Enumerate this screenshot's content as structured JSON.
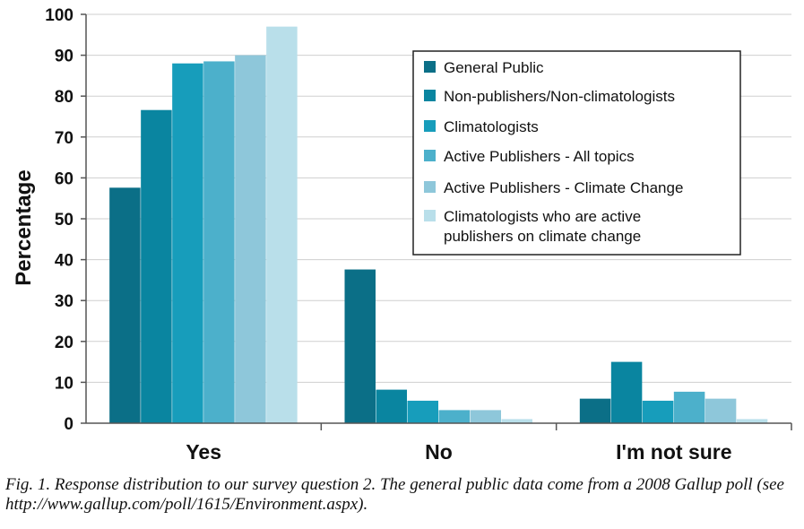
{
  "chart_data": {
    "type": "bar",
    "categories": [
      "Yes",
      "No",
      "I'm not sure"
    ],
    "ylabel": "Percentage",
    "ylim": [
      0,
      100
    ],
    "yticks": [
      "0",
      "10",
      "20",
      "30",
      "40",
      "50",
      "60",
      "70",
      "80",
      "90",
      "100"
    ],
    "legend_position": "top-right",
    "grid": true,
    "series": [
      {
        "name": "General Public",
        "color": "#0b6f87",
        "values": [
          57.6,
          37.6,
          6.0
        ]
      },
      {
        "name": "Non-publishers/Non-climatologists",
        "color": "#0a85a0",
        "values": [
          76.6,
          8.2,
          15.0
        ]
      },
      {
        "name": "Climatologists",
        "color": "#179dbb",
        "values": [
          88.0,
          5.5,
          5.5
        ]
      },
      {
        "name": "Active Publishers - All topics",
        "color": "#4cb0cb",
        "values": [
          88.5,
          3.2,
          7.7
        ]
      },
      {
        "name": "Active Publishers - Climate Change",
        "color": "#8ec7da",
        "values": [
          90.0,
          3.2,
          6.0
        ]
      },
      {
        "name": "Climatologists who are active publishers on climate change",
        "legend_lines": [
          "Climatologists who are active",
          "publishers on climate change"
        ],
        "color": "#b9dfea",
        "values": [
          97.0,
          1.0,
          1.0
        ]
      }
    ]
  },
  "caption": "Fig. 1. Response distribution to our survey question 2. The general public data come from a 2008 Gallup poll (see http://www.gallup.com/poll/1615/Environment.aspx)."
}
